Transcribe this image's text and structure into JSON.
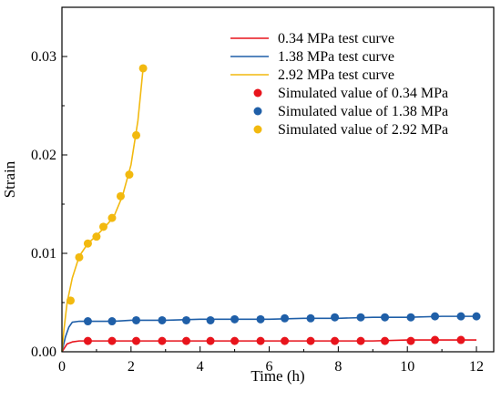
{
  "chart_data": {
    "type": "line",
    "title": "",
    "xlabel": "Time (h)",
    "ylabel": "Strain",
    "xlim": [
      0,
      12.5
    ],
    "ylim": [
      0,
      0.035
    ],
    "xticks": [
      0,
      2,
      4,
      6,
      8,
      10,
      12
    ],
    "yticks": [
      0.0,
      0.01,
      0.02,
      0.03
    ],
    "xtick_labels": [
      "0",
      "2",
      "4",
      "6",
      "8",
      "10",
      "12"
    ],
    "ytick_labels": [
      "0.00",
      "0.01",
      "0.02",
      "0.03"
    ],
    "grid": false,
    "legend_position": "top-right",
    "series": [
      {
        "name": "0.34 MPa test curve",
        "kind": "line",
        "color": "#e8141c",
        "x": [
          0,
          0.15,
          0.3,
          0.5,
          1,
          2,
          3,
          4,
          5,
          6,
          7,
          8,
          9,
          10,
          11,
          12
        ],
        "y": [
          0,
          0.0008,
          0.001,
          0.0011,
          0.0011,
          0.0011,
          0.0011,
          0.0011,
          0.0011,
          0.0011,
          0.0011,
          0.0011,
          0.0011,
          0.0012,
          0.0012,
          0.0012
        ]
      },
      {
        "name": "1.38 MPa test curve",
        "kind": "line",
        "color": "#1f5fa8",
        "x": [
          0,
          0.1,
          0.2,
          0.3,
          0.5,
          1,
          1.5,
          2,
          3,
          4,
          5,
          6,
          7,
          8,
          9,
          10,
          11,
          12
        ],
        "y": [
          0,
          0.0015,
          0.0025,
          0.003,
          0.0031,
          0.0031,
          0.0031,
          0.0032,
          0.0032,
          0.0033,
          0.0033,
          0.0033,
          0.0034,
          0.0034,
          0.0035,
          0.0035,
          0.0036,
          0.0036
        ]
      },
      {
        "name": "2.92 MPa test curve",
        "kind": "line",
        "color": "#f2b90f",
        "x": [
          0,
          0.05,
          0.15,
          0.3,
          0.5,
          0.75,
          1.0,
          1.25,
          1.5,
          1.75,
          2.0,
          2.2,
          2.35
        ],
        "y": [
          0,
          0.002,
          0.005,
          0.0075,
          0.0097,
          0.011,
          0.0118,
          0.0127,
          0.0137,
          0.0158,
          0.019,
          0.0235,
          0.0288
        ]
      },
      {
        "name": "Simulated value of 0.34 MPa",
        "kind": "scatter",
        "color": "#e8141c",
        "x": [
          0.75,
          1.45,
          2.15,
          2.9,
          3.6,
          4.3,
          5.0,
          5.75,
          6.45,
          7.2,
          7.9,
          8.65,
          9.35,
          10.1,
          10.8,
          11.55
        ],
        "y": [
          0.0011,
          0.0011,
          0.0011,
          0.0011,
          0.0011,
          0.0011,
          0.0011,
          0.0011,
          0.0011,
          0.0011,
          0.0011,
          0.0011,
          0.0011,
          0.0011,
          0.0012,
          0.0012
        ]
      },
      {
        "name": "Simulated value of 1.38 MPa",
        "kind": "scatter",
        "color": "#1f5fa8",
        "x": [
          0.75,
          1.45,
          2.15,
          2.9,
          3.6,
          4.3,
          5.0,
          5.75,
          6.45,
          7.2,
          7.9,
          8.65,
          9.35,
          10.1,
          10.8,
          11.55,
          12.0
        ],
        "y": [
          0.0031,
          0.0031,
          0.0032,
          0.0032,
          0.0032,
          0.0032,
          0.0033,
          0.0033,
          0.0034,
          0.0034,
          0.0035,
          0.0035,
          0.0035,
          0.0035,
          0.0036,
          0.0036,
          0.0036
        ]
      },
      {
        "name": "Simulated value of 2.92 MPa",
        "kind": "scatter",
        "color": "#f2b90f",
        "x": [
          0.25,
          0.5,
          0.75,
          1.0,
          1.2,
          1.45,
          1.7,
          1.95,
          2.15,
          2.35
        ],
        "y": [
          0.0052,
          0.0096,
          0.011,
          0.0117,
          0.0127,
          0.0136,
          0.0158,
          0.018,
          0.022,
          0.0288
        ]
      }
    ]
  }
}
